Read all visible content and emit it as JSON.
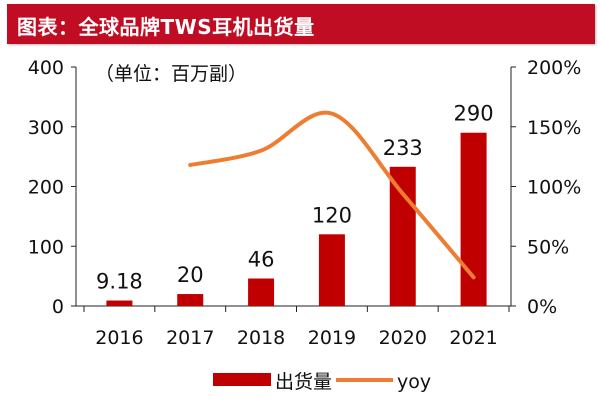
{
  "title": "图表：全球品牌TWS耳机出货量",
  "colors": {
    "title_bg": "#c00d23",
    "bar": "#c00000",
    "line": "#ed7d31"
  },
  "chart_data": {
    "type": "bar+line",
    "categories": [
      "2016",
      "2017",
      "2018",
      "2019",
      "2020",
      "2021"
    ],
    "unit_note": "（单位：百万副）",
    "series": [
      {
        "name": "出货量",
        "type": "bar",
        "axis": "left",
        "values": [
          9.18,
          20,
          46,
          120,
          233,
          290
        ],
        "labels": [
          "9.18",
          "20",
          "46",
          "120",
          "233",
          "290"
        ]
      },
      {
        "name": "yoy",
        "type": "line",
        "axis": "right",
        "values": [
          null,
          118,
          130,
          161,
          94,
          24
        ]
      }
    ],
    "y_left": {
      "lim": [
        0,
        400
      ],
      "ticks": [
        "0",
        "100",
        "200",
        "300",
        "400"
      ]
    },
    "y_right": {
      "lim": [
        0,
        200
      ],
      "ticks": [
        "0%",
        "50%",
        "100%",
        "150%",
        "200%"
      ]
    },
    "grid": false,
    "legend": "bottom"
  }
}
